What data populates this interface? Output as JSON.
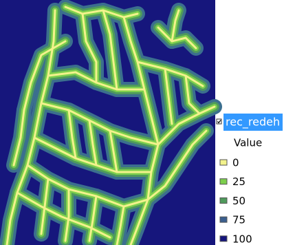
{
  "legend": {
    "layer": "rec_redeh",
    "field": "Value",
    "classes": [
      {
        "value": 0,
        "color": "#f2f28c"
      },
      {
        "value": 25,
        "color": "#7ccf4c"
      },
      {
        "value": 50,
        "color": "#4f9a5c"
      },
      {
        "value": 75,
        "color": "#3b5f8e"
      },
      {
        "value": 100,
        "color": "#16167c"
      }
    ]
  }
}
